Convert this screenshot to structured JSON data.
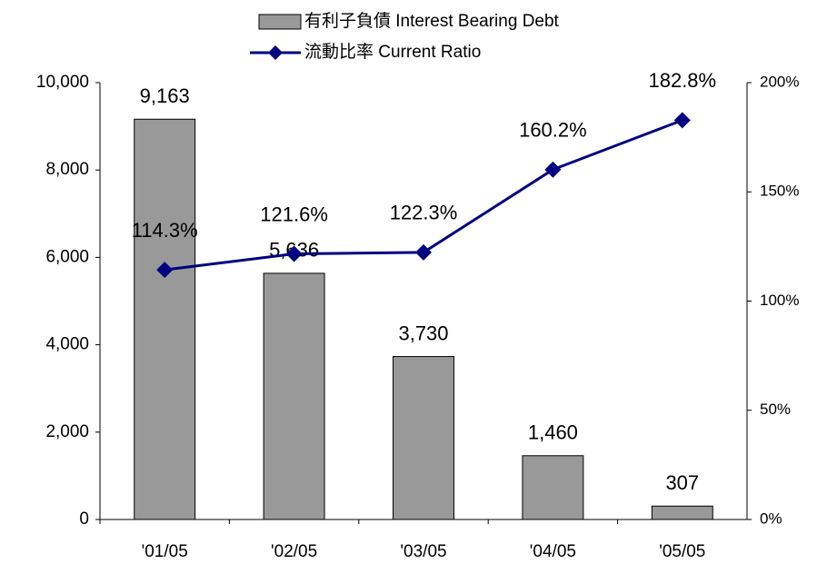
{
  "chart_data": {
    "type": "combo",
    "categories": [
      "'01/05",
      "'02/05",
      "'03/05",
      "'04/05",
      "'05/05"
    ],
    "series": [
      {
        "name": "有利子負債 Interest Bearing Debt",
        "type": "bar",
        "color": "#999999",
        "values": [
          9163,
          5636,
          3730,
          1460,
          307
        ],
        "value_labels": [
          "9,163",
          "5,636",
          "3,730",
          "1,460",
          "307"
        ]
      },
      {
        "name": "流動比率 Current Ratio",
        "type": "line",
        "axis": "y2",
        "color": "#000080",
        "values": [
          114.3,
          121.6,
          122.3,
          160.2,
          182.8
        ],
        "value_labels": [
          "114.3%",
          "121.6%",
          "122.3%",
          "160.2%",
          "182.8%"
        ]
      }
    ],
    "ylim": [
      0,
      10000
    ],
    "yticks": [
      0,
      {
        "value": 2000,
        "label": "2,000"
      },
      {
        "value": 4000,
        "label": "4,000"
      },
      {
        "value": 6000,
        "label": "6,000"
      },
      {
        "value": 8000,
        "label": "8,000"
      },
      {
        "value": 10000,
        "label": "10,000"
      }
    ],
    "y2lim": [
      0,
      200
    ],
    "y2ticks": [
      {
        "value": 0,
        "label": "0%"
      },
      {
        "value": 50,
        "label": "50%"
      },
      {
        "value": 100,
        "label": "100%"
      },
      {
        "value": 150,
        "label": "150%"
      },
      {
        "value": 200,
        "label": "200%"
      }
    ],
    "grid": false
  }
}
